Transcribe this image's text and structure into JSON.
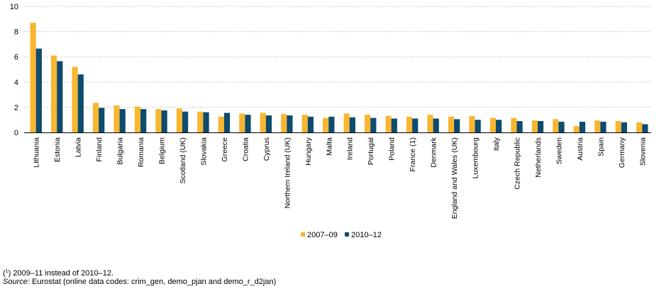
{
  "chart_data": {
    "type": "bar",
    "title": "",
    "xlabel": "",
    "ylabel": "",
    "ylim": [
      0,
      10
    ],
    "yticks": [
      "0",
      "2",
      "4",
      "6",
      "8",
      "10"
    ],
    "grid": "horizontal",
    "legend_position": "bottom-center",
    "categories": [
      "Lithuania",
      "Estonia",
      "Latvia",
      "Finland",
      "Bulgaria",
      "Romania",
      "Belgium",
      "Scotland (UK)",
      "Slovakia",
      "Greece",
      "Croatia",
      "Cyprus",
      "Northern Ireland (UK)",
      "Hungary",
      "Malta",
      "Ireland",
      "Portugal",
      "Poland",
      "France (1)",
      "Denmark",
      "England and Wales (UK)",
      "Luxembourg",
      "Italy",
      "Czech Republic",
      "Netherlands",
      "Sweden",
      "Austria",
      "Spain",
      "Germany",
      "Slovenia"
    ],
    "series": [
      {
        "name": "2007–09",
        "color": "#f8b631",
        "values": [
          8.7,
          6.1,
          5.2,
          2.35,
          2.15,
          2.05,
          1.85,
          1.9,
          1.65,
          1.25,
          1.5,
          1.55,
          1.45,
          1.4,
          1.15,
          1.5,
          1.4,
          1.3,
          1.25,
          1.4,
          1.25,
          1.3,
          1.15,
          1.15,
          0.95,
          1.05,
          0.5,
          0.95,
          0.9,
          0.8
        ]
      },
      {
        "name": "2010–12",
        "color": "#0e4c6e",
        "values": [
          6.65,
          5.65,
          4.6,
          1.95,
          1.85,
          1.85,
          1.75,
          1.65,
          1.6,
          1.55,
          1.4,
          1.35,
          1.35,
          1.25,
          1.25,
          1.2,
          1.15,
          1.1,
          1.1,
          1.1,
          1.05,
          1.0,
          1.0,
          0.9,
          0.9,
          0.85,
          0.85,
          0.85,
          0.8,
          0.65
        ]
      }
    ]
  },
  "footnote": {
    "marker": "1",
    "text": "2009–11 instead of 2010–12."
  },
  "source": {
    "label": "Source:",
    "text": "Eurostat (online data codes: crim_gen, demo_pjan and demo_r_d2jan)"
  }
}
